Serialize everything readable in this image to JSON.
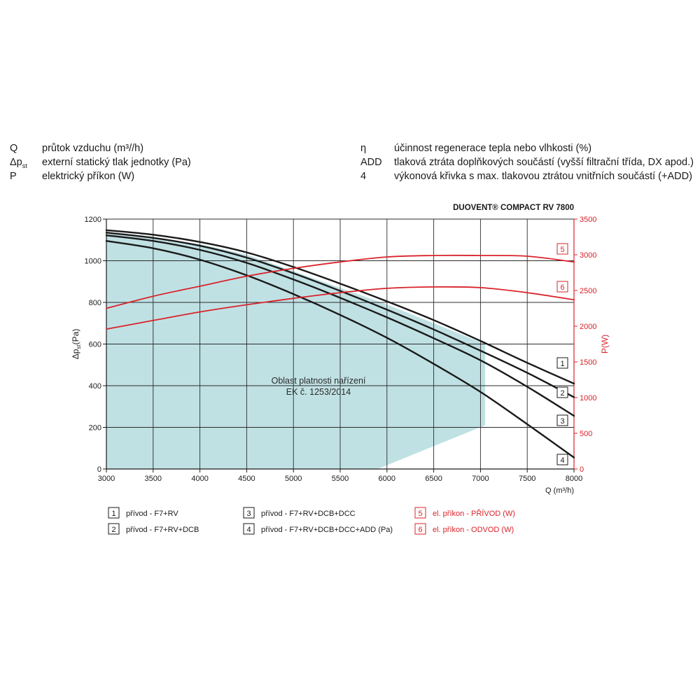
{
  "symbols_left": [
    {
      "symbol": "Q",
      "description": "průtok vzduchu (m³//h)"
    },
    {
      "symbol": "Δp",
      "symbol_sub": "st",
      "description": "externí statický tlak jednotky (Pa)"
    },
    {
      "symbol": "P",
      "description": "elektrický příkon (W)"
    }
  ],
  "symbols_right": [
    {
      "symbol": "η",
      "description": "účinnost regenerace tepla nebo vlhkosti (%)"
    },
    {
      "symbol": "ADD",
      "description": "tlaková ztráta doplňkových součástí (vyšší filtrační třída, DX apod.)"
    },
    {
      "symbol": "4",
      "description": "výkonová křivka s max. tlakovou ztrátou vnitřních součástí (+ADD)"
    }
  ],
  "chart_data": {
    "type": "line",
    "title": "DUOVENT® COMPACT RV 7800",
    "xlabel": "Q (m³/h)",
    "ylabel": "Δp",
    "ylabel_sub": "st",
    "ylabel_unit": "(Pa)",
    "y2label": "P(W)",
    "xlim": [
      3000,
      8000
    ],
    "ylim": [
      0,
      1200
    ],
    "y2lim": [
      0,
      3500
    ],
    "x_ticks": [
      "3000",
      "3500",
      "4000",
      "4500",
      "5000",
      "5500",
      "6000",
      "6500",
      "7000",
      "7500",
      "8000"
    ],
    "y_ticks": [
      "0",
      "200",
      "400",
      "600",
      "800",
      "1000",
      "1200"
    ],
    "y2_ticks": [
      "0",
      "500",
      "1000",
      "1500",
      "2000",
      "2500",
      "3000",
      "3500"
    ],
    "grid": true,
    "region_label": [
      "Oblast platnosti nařízení",
      "EK č. 1253/2014"
    ],
    "region_color": "#c0e1e4",
    "region_boundary": [
      {
        "x": 3000,
        "y": 1140
      },
      {
        "x": 4000,
        "y": 1080
      },
      {
        "x": 4500,
        "y": 1030
      },
      {
        "x": 5000,
        "y": 950
      },
      {
        "x": 5500,
        "y": 870
      },
      {
        "x": 6000,
        "y": 790
      },
      {
        "x": 6500,
        "y": 700
      },
      {
        "x": 7050,
        "y": 600
      },
      {
        "x": 7050,
        "y": 210
      },
      {
        "x": 5900,
        "y": 0
      },
      {
        "x": 3000,
        "y": 0
      }
    ],
    "series": [
      {
        "name": "přívod - F7+RV",
        "axis": "left",
        "color": "#1a1a1a",
        "tag": "1",
        "points": [
          [
            3000,
            1147
          ],
          [
            3500,
            1125
          ],
          [
            4000,
            1090
          ],
          [
            4500,
            1040
          ],
          [
            5000,
            970
          ],
          [
            5500,
            890
          ],
          [
            6000,
            805
          ],
          [
            6500,
            715
          ],
          [
            7000,
            615
          ],
          [
            7500,
            510
          ],
          [
            8000,
            410
          ]
        ]
      },
      {
        "name": "přívod - F7+RV+DCB",
        "axis": "left",
        "color": "#1a1a1a",
        "tag": "2",
        "points": [
          [
            3000,
            1135
          ],
          [
            3500,
            1110
          ],
          [
            4000,
            1072
          ],
          [
            4500,
            1015
          ],
          [
            5000,
            940
          ],
          [
            5500,
            855
          ],
          [
            6000,
            765
          ],
          [
            6500,
            670
          ],
          [
            7000,
            568
          ],
          [
            7500,
            462
          ],
          [
            8000,
            345
          ]
        ]
      },
      {
        "name": "přívod - F7+RV+DCB+DCC",
        "axis": "left",
        "color": "#1a1a1a",
        "tag": "3",
        "points": [
          [
            3000,
            1122
          ],
          [
            3500,
            1095
          ],
          [
            4000,
            1052
          ],
          [
            4500,
            990
          ],
          [
            5000,
            910
          ],
          [
            5500,
            822
          ],
          [
            6000,
            728
          ],
          [
            6500,
            628
          ],
          [
            7000,
            522
          ],
          [
            7500,
            395
          ],
          [
            8000,
            255
          ]
        ]
      },
      {
        "name": "přívod - F7+RV+DCB+DCC+ADD (Pa)",
        "axis": "left",
        "color": "#1a1a1a",
        "tag": "4",
        "points": [
          [
            3000,
            1095
          ],
          [
            3500,
            1060
          ],
          [
            4000,
            1005
          ],
          [
            4500,
            930
          ],
          [
            5000,
            840
          ],
          [
            5500,
            740
          ],
          [
            6000,
            630
          ],
          [
            6500,
            505
          ],
          [
            7000,
            370
          ],
          [
            7500,
            215
          ],
          [
            8000,
            55
          ]
        ]
      },
      {
        "name": "el. příkon - PŘÍVOD (W)",
        "axis": "right",
        "color": "#d9232a",
        "tag": "5",
        "points": [
          [
            3000,
            2250
          ],
          [
            3500,
            2420
          ],
          [
            4000,
            2560
          ],
          [
            4500,
            2700
          ],
          [
            5000,
            2810
          ],
          [
            5500,
            2900
          ],
          [
            6000,
            2970
          ],
          [
            6500,
            2990
          ],
          [
            7000,
            2990
          ],
          [
            7500,
            2980
          ],
          [
            8000,
            2900
          ]
        ]
      },
      {
        "name": "el. příkon - ODVOD (W)",
        "axis": "right",
        "color": "#d9232a",
        "tag": "6",
        "points": [
          [
            3000,
            1960
          ],
          [
            3500,
            2080
          ],
          [
            4000,
            2200
          ],
          [
            4500,
            2300
          ],
          [
            5000,
            2390
          ],
          [
            5500,
            2470
          ],
          [
            6000,
            2530
          ],
          [
            6500,
            2550
          ],
          [
            7000,
            2540
          ],
          [
            7500,
            2470
          ],
          [
            8000,
            2370
          ]
        ]
      }
    ],
    "legend": [
      {
        "tag": "1",
        "label": "přívod - F7+RV",
        "color": "#1a1a1a"
      },
      {
        "tag": "2",
        "label": "přívod - F7+RV+DCB",
        "color": "#1a1a1a"
      },
      {
        "tag": "3",
        "label": "přívod - F7+RV+DCB+DCC",
        "color": "#1a1a1a"
      },
      {
        "tag": "4",
        "label": "přívod - F7+RV+DCB+DCC+ADD (Pa)",
        "color": "#1a1a1a"
      },
      {
        "tag": "5",
        "label": "el. příkon - PŘÍVOD (W)",
        "color": "#d9232a"
      },
      {
        "tag": "6",
        "label": "el. příkon - ODVOD (W)",
        "color": "#d9232a"
      }
    ],
    "legend_position": "bottom"
  }
}
